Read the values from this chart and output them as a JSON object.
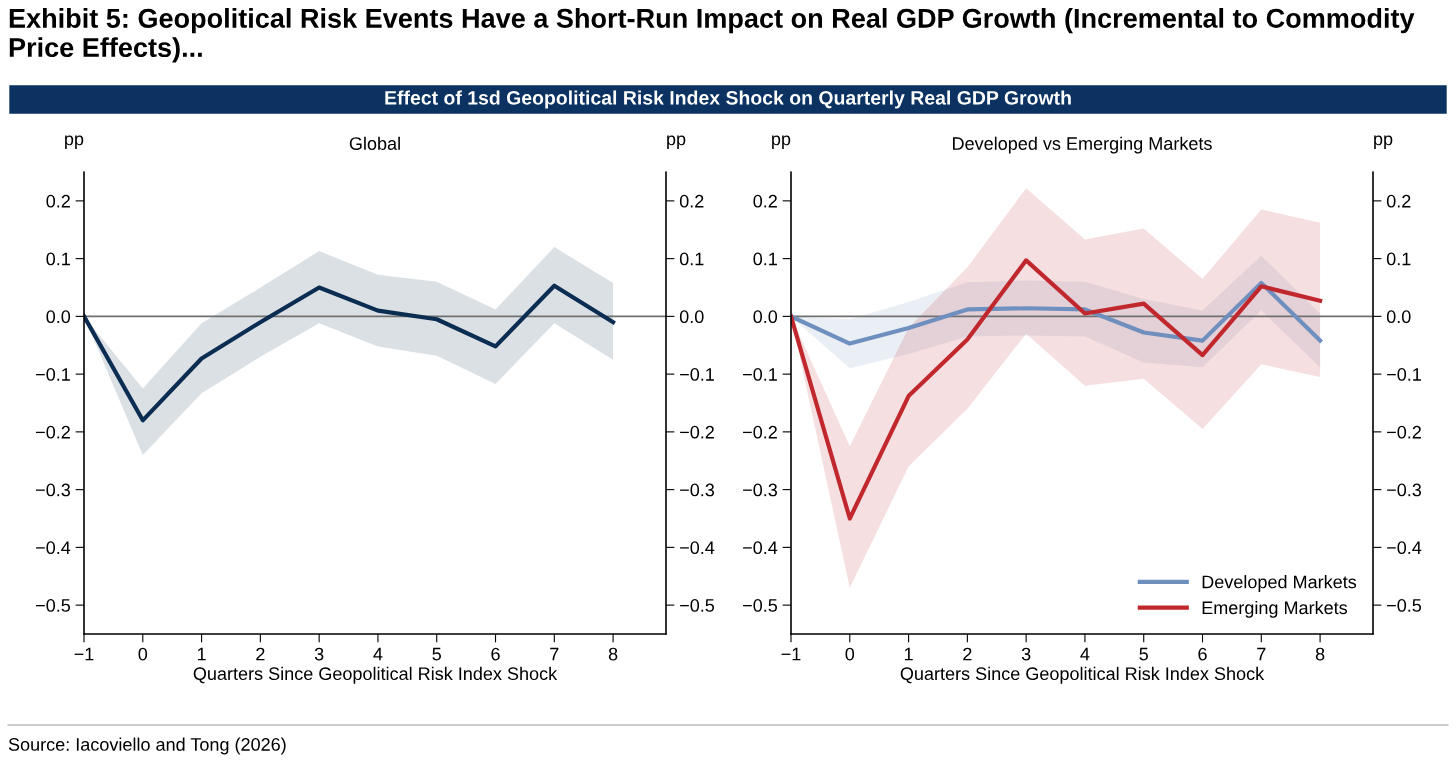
{
  "chart_data": [
    {
      "type": "line",
      "title": "Global",
      "xlabel": "Quarters Since Geopolitical Risk Index Shock",
      "ylabel": "pp",
      "y2label": "pp",
      "annotations": [
        "Exhibit 5: Geopolitical Risk Events Have a Short-Run Impact on Real GDP Growth (Incremental to Commodity Price Effects)...",
        "Effect of 1sd Geopolitical Risk Index Shock on Quarterly Real GDP Growth",
        "Source: Iacoviello and Tong (2026)"
      ],
      "x": [
        -1,
        0,
        1,
        2,
        3,
        4,
        5,
        6,
        7,
        8
      ],
      "series": [
        {
          "color": "#0b2d52",
          "values": [
            0,
            -0.18,
            -0.073,
            -0.01,
            0.05,
            0.01,
            -0.005,
            -0.052,
            0.053,
            -0.01
          ],
          "lower": [
            0,
            -0.24,
            -0.133,
            -0.07,
            -0.012,
            -0.052,
            -0.068,
            -0.117,
            -0.012,
            -0.075
          ],
          "upper": [
            0,
            -0.125,
            -0.012,
            0.05,
            0.113,
            0.072,
            0.06,
            0.012,
            0.12,
            0.058
          ]
        }
      ],
      "xlim": [
        -1,
        8.9
      ],
      "ylim": [
        -0.55,
        0.25
      ],
      "xticks": [
        -1,
        0,
        1,
        2,
        3,
        4,
        5,
        6,
        7,
        8
      ],
      "yticks": [
        -0.5,
        -0.4,
        -0.3,
        -0.2,
        -0.1,
        {
          "value": 0,
          "label": "0.0"
        },
        0.1,
        0.2
      ],
      "y2lim": [
        -0.55,
        0.25
      ],
      "y2ticks": [
        -0.5,
        -0.4,
        -0.3,
        -0.2,
        -0.1,
        {
          "value": 0,
          "label": "0.0"
        },
        0.1,
        0.2
      ],
      "ref_lines": [
        {
          "axis": "y",
          "value": 0,
          "color": "#707070"
        }
      ],
      "grid": false,
      "legend": false,
      "marker": "none",
      "line_style": "solid"
    },
    {
      "type": "line",
      "title": "Developed vs Emerging Markets",
      "xlabel": "Quarters Since Geopolitical Risk Index Shock",
      "ylabel": "pp",
      "y2label": "pp",
      "x": [
        -1,
        0,
        1,
        2,
        3,
        4,
        5,
        6,
        7,
        8
      ],
      "series": [
        {
          "name": "Developed Markets",
          "color": "#6f8fbf",
          "values": [
            0,
            -0.047,
            -0.02,
            0.012,
            0.014,
            0.012,
            -0.028,
            -0.042,
            0.058,
            -0.042
          ],
          "lower": [
            0,
            -0.09,
            -0.065,
            -0.035,
            -0.033,
            -0.035,
            -0.08,
            -0.088,
            0.01,
            -0.088
          ],
          "upper": [
            0,
            -0.005,
            0.025,
            0.059,
            0.062,
            0.06,
            0.03,
            0.01,
            0.105,
            0.005
          ]
        },
        {
          "name": "Emerging Markets",
          "color": "#c0282d",
          "values": [
            0,
            -0.35,
            -0.138,
            -0.04,
            0.097,
            0.005,
            0.022,
            -0.067,
            0.052,
            0.027
          ],
          "lower": [
            0,
            -0.47,
            -0.26,
            -0.16,
            -0.03,
            -0.12,
            -0.108,
            -0.195,
            -0.083,
            -0.105
          ],
          "upper": [
            0,
            -0.225,
            -0.02,
            0.085,
            0.222,
            0.133,
            0.152,
            0.065,
            0.185,
            0.162
          ]
        }
      ],
      "xlim": [
        -1,
        8.9
      ],
      "ylim": [
        -0.55,
        0.25
      ],
      "xticks": [
        -1,
        0,
        1,
        2,
        3,
        4,
        5,
        6,
        7,
        8
      ],
      "yticks": [
        -0.5,
        -0.4,
        -0.3,
        -0.2,
        -0.1,
        {
          "value": 0,
          "label": "0.0"
        },
        0.1,
        0.2
      ],
      "y2lim": [
        -0.55,
        0.25
      ],
      "y2ticks": [
        -0.5,
        -0.4,
        -0.3,
        -0.2,
        -0.1,
        {
          "value": 0,
          "label": "0.0"
        },
        0.1,
        0.2
      ],
      "ref_lines": [
        {
          "axis": "y",
          "value": 0,
          "color": "#707070"
        }
      ],
      "grid": false,
      "legend": "bottom right",
      "marker": "none",
      "line_style": "solid"
    }
  ]
}
